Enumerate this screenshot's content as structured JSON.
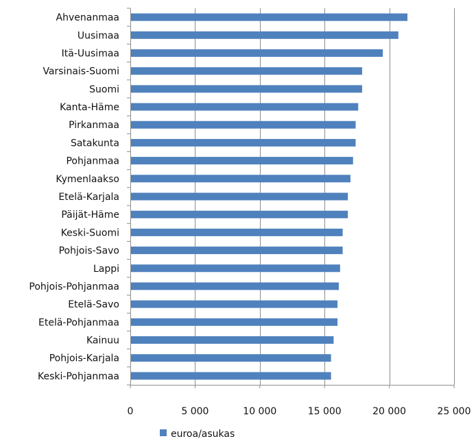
{
  "chart_data": {
    "type": "bar",
    "orientation": "horizontal",
    "categories": [
      "Ahvenanmaa",
      "Uusimaa",
      "Itä-Uusimaa",
      "Varsinais-Suomi",
      "Suomi",
      "Kanta-Häme",
      "Pirkanmaa",
      "Satakunta",
      "Pohjanmaa",
      "Kymenlaakso",
      "Etelä-Karjala",
      "Päijät-Häme",
      "Keski-Suomi",
      "Pohjois-Savo",
      "Lappi",
      "Pohjois-Pohjanmaa",
      "Etelä-Savo",
      "Etelä-Pohjanmaa",
      "Kainuu",
      "Pohjois-Karjala",
      "Keski-Pohjanmaa"
    ],
    "series": [
      {
        "name": "euroa/asukas",
        "color": "#4F81BD",
        "values": [
          21400,
          20700,
          19500,
          17900,
          17900,
          17600,
          17400,
          17400,
          17200,
          17000,
          16800,
          16800,
          16400,
          16400,
          16200,
          16100,
          16000,
          16000,
          15700,
          15500,
          15500
        ]
      }
    ],
    "xlim": [
      0,
      25000
    ],
    "xticks": [
      0,
      5000,
      10000,
      15000,
      20000,
      25000
    ],
    "xtick_labels": [
      "0",
      "5 000",
      "10 000",
      "15 000",
      "20 000",
      "25 000"
    ],
    "grid": "vertical",
    "legend_position": "bottom-left",
    "title": "",
    "xlabel": "",
    "ylabel": ""
  }
}
